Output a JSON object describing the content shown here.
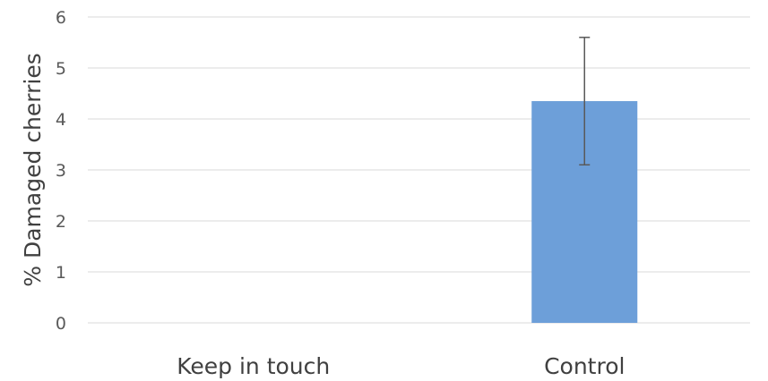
{
  "chart_data": {
    "type": "bar",
    "categories": [
      "Keep in touch",
      "Control"
    ],
    "values": [
      0,
      4.35
    ],
    "error_bars": [
      {
        "low": 0,
        "high": 0
      },
      {
        "low": 3.1,
        "high": 5.6
      }
    ],
    "ylabel": "% Damaged cherries",
    "xlabel": "",
    "ylim": [
      0,
      6
    ],
    "yticks": [
      0,
      1,
      2,
      3,
      4,
      5,
      6
    ],
    "grid": true,
    "legend": "none",
    "colors": {
      "bar": "#6d9fd9",
      "gridline": "#d9d9d9",
      "errorbar": "#595959",
      "text": "#595959"
    }
  }
}
